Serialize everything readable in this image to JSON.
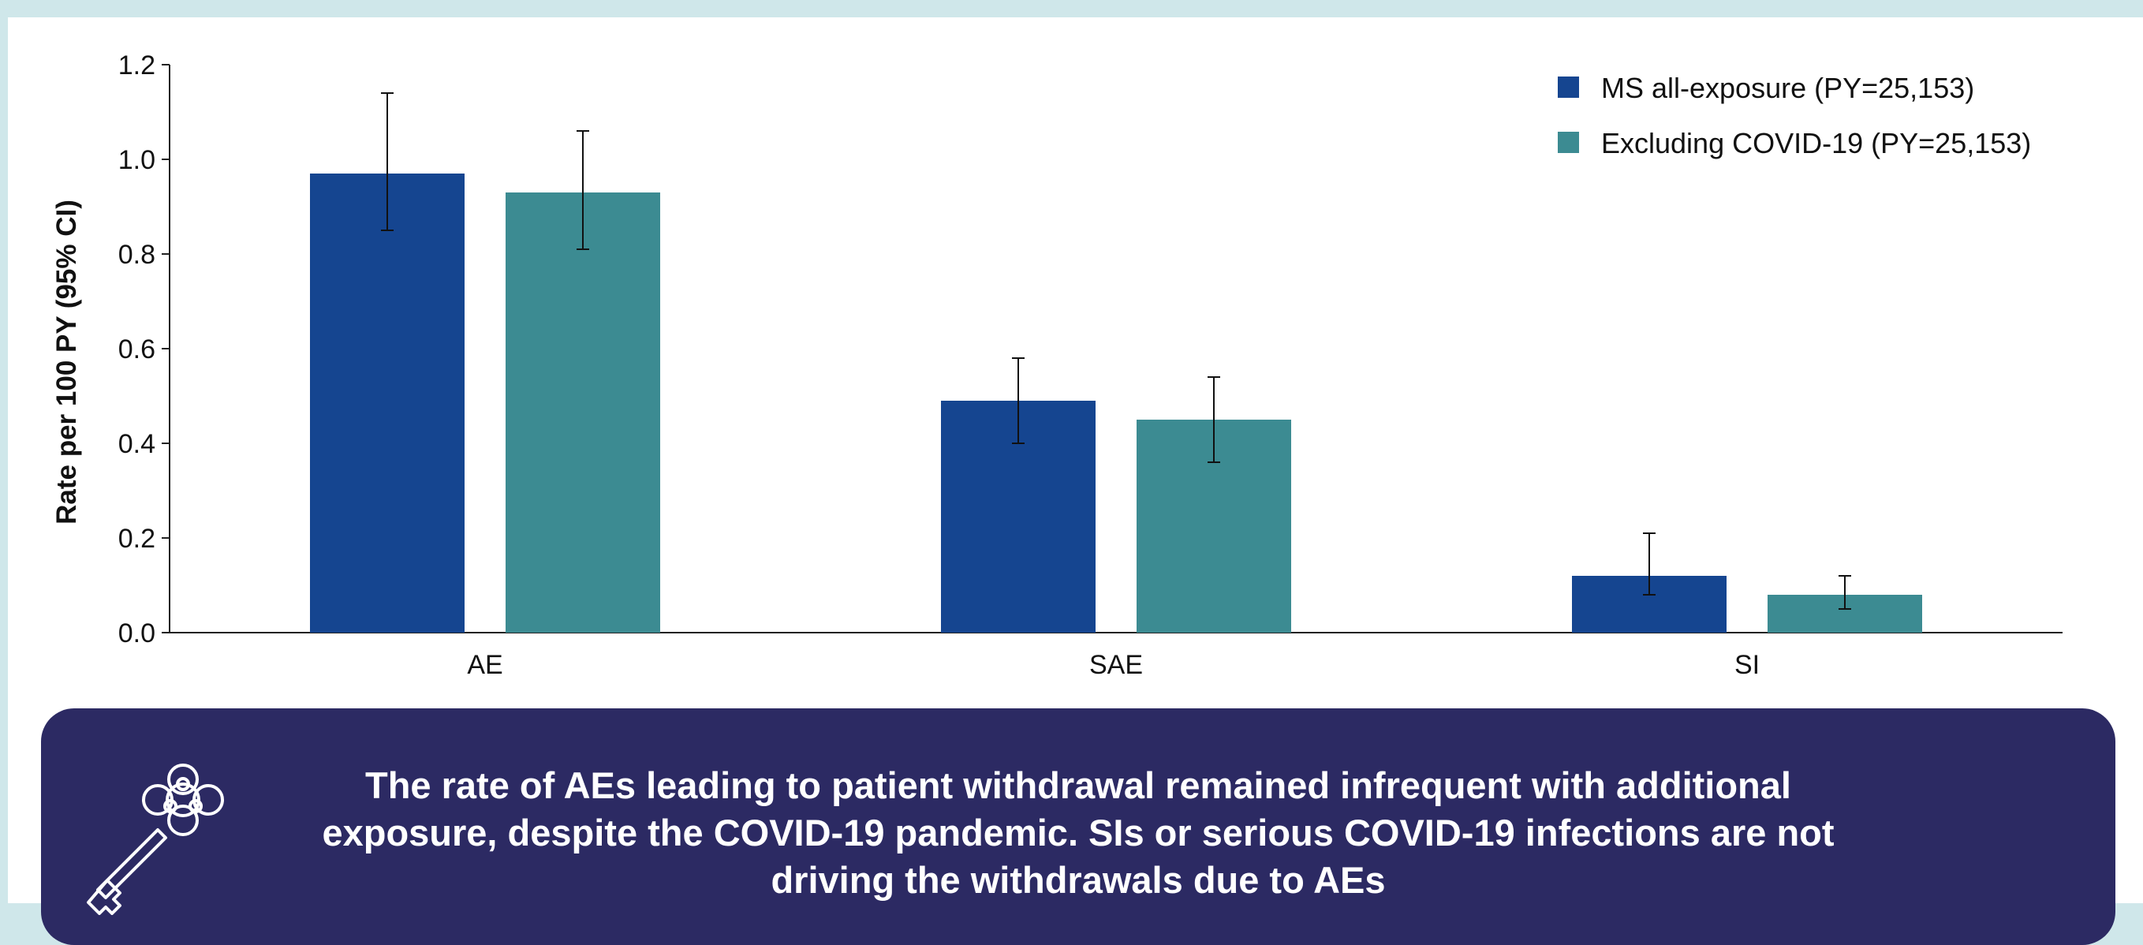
{
  "chart_data": {
    "type": "bar",
    "title": "",
    "xlabel": "",
    "ylabel": "Rate per 100  PY (95% CI)",
    "categories": [
      "AE",
      "SAE",
      "SI"
    ],
    "ylim": [
      0,
      1.2
    ],
    "yticks": [
      "0.0",
      "0.2",
      "0.4",
      "0.6",
      "0.8",
      "1.0",
      "1.2"
    ],
    "ytick_values": [
      0,
      0.2,
      0.4,
      0.6,
      0.8,
      1.0,
      1.2
    ],
    "legend_position": "top-right",
    "grid": false,
    "series": [
      {
        "name": "MS all-exposure (PY=25,153)",
        "color": "#154590",
        "values": [
          0.97,
          0.49,
          0.12
        ],
        "ci_low": [
          0.85,
          0.4,
          0.08
        ],
        "ci_high": [
          1.14,
          0.58,
          0.21
        ]
      },
      {
        "name": "Excluding COVID-19 (PY=25,153)",
        "color": "#3c8b92",
        "values": [
          0.93,
          0.45,
          0.08
        ],
        "ci_low": [
          0.81,
          0.36,
          0.05
        ],
        "ci_high": [
          1.06,
          0.54,
          0.12
        ]
      }
    ]
  },
  "takeaway": {
    "text": "The rate of AEs leading to patient withdrawal remained infrequent with additional exposure, despite the COVID-19 pandemic. SIs or serious COVID-19 infections are not driving the withdrawals due to AEs",
    "icon": "key-icon",
    "background_color": "#2c2a63"
  }
}
